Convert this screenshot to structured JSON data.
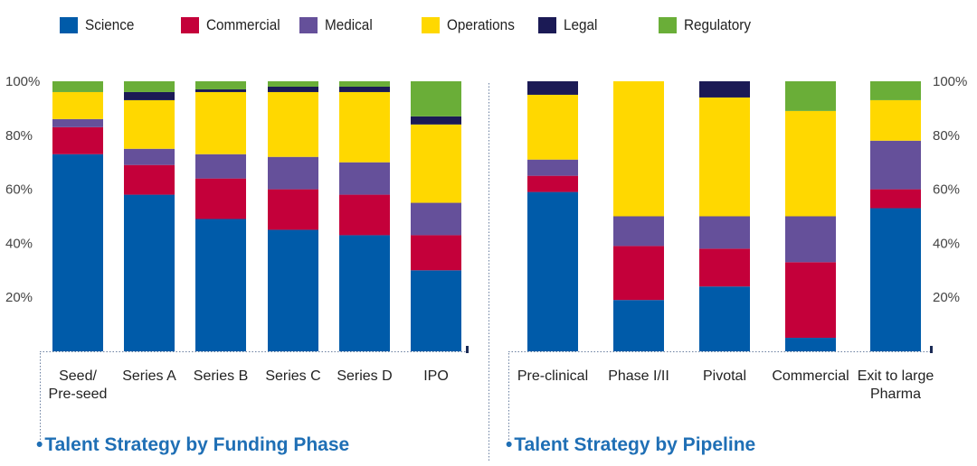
{
  "legend": [
    {
      "name": "Science",
      "color": "#005ba9"
    },
    {
      "name": "Commercial",
      "color": "#c4003a"
    },
    {
      "name": "Medical",
      "color": "#65509a"
    },
    {
      "name": "Operations",
      "color": "#ffd800"
    },
    {
      "name": "Legal",
      "color": "#1b1a55"
    },
    {
      "name": "Regulatory",
      "color": "#6aae38"
    }
  ],
  "chart_data": [
    {
      "type": "bar",
      "stacked": true,
      "title": "Talent Strategy by Funding Phase",
      "categories": [
        "Seed/ Pre-seed",
        "Series A",
        "Series B",
        "Series C",
        "Series D",
        "IPO"
      ],
      "series": [
        {
          "name": "Science",
          "values": [
            73,
            58,
            49,
            45,
            43,
            30
          ]
        },
        {
          "name": "Commercial",
          "values": [
            10,
            11,
            15,
            15,
            15,
            13
          ]
        },
        {
          "name": "Medical",
          "values": [
            3,
            6,
            9,
            12,
            12,
            12
          ]
        },
        {
          "name": "Operations",
          "values": [
            10,
            18,
            23,
            24,
            26,
            29
          ]
        },
        {
          "name": "Legal",
          "values": [
            0,
            3,
            1,
            2,
            2,
            3
          ]
        },
        {
          "name": "Regulatory",
          "values": [
            4,
            4,
            3,
            2,
            2,
            13
          ]
        }
      ],
      "yticks": [
        "20%",
        "40%",
        "60%",
        "80%",
        "100%"
      ],
      "ylim": [
        0,
        100
      ],
      "ytick_side": "left"
    },
    {
      "type": "bar",
      "stacked": true,
      "title": "Talent Strategy by Pipeline",
      "categories": [
        "Pre-clinical",
        "Phase I/II",
        "Pivotal",
        "Commercial",
        "Exit to large Pharma"
      ],
      "series": [
        {
          "name": "Science",
          "values": [
            59,
            19,
            24,
            5,
            53
          ]
        },
        {
          "name": "Commercial",
          "values": [
            6,
            20,
            14,
            28,
            7
          ]
        },
        {
          "name": "Medical",
          "values": [
            6,
            11,
            12,
            17,
            18
          ]
        },
        {
          "name": "Operations",
          "values": [
            24,
            50,
            44,
            39,
            15
          ]
        },
        {
          "name": "Legal",
          "values": [
            5,
            0,
            6,
            0,
            0
          ]
        },
        {
          "name": "Regulatory",
          "values": [
            0,
            0,
            0,
            11,
            7
          ]
        }
      ],
      "yticks": [
        "20%",
        "40%",
        "60%",
        "80%",
        "100%"
      ],
      "ylim": [
        0,
        100
      ],
      "ytick_side": "right"
    }
  ]
}
